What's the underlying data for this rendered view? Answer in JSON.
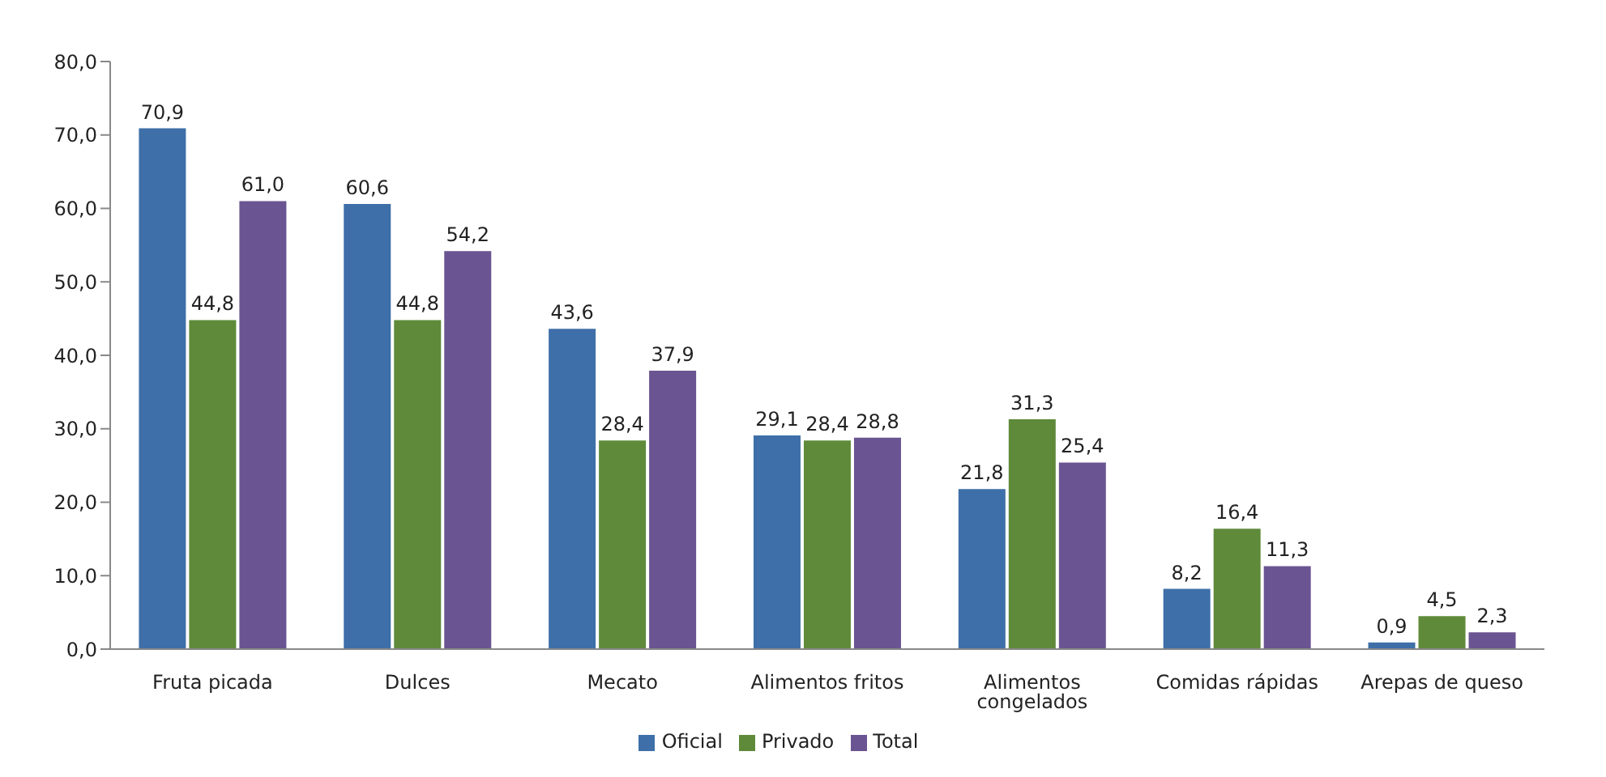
{
  "chart_data": {
    "type": "bar",
    "categories": [
      "Fruta picada",
      "Dulces",
      "Mecato",
      "Alimentos fritos",
      "Alimentos congelados",
      "Comidas rápidas",
      "Arepas de queso"
    ],
    "series": [
      {
        "name": "Oficial",
        "color": "#3e6fa8",
        "values": [
          70.9,
          60.6,
          43.6,
          29.1,
          21.8,
          8.2,
          0.9
        ],
        "value_labels": [
          "70,9",
          "60,6",
          "43,6",
          "29,1",
          "21,8",
          "8,2",
          "0,9"
        ]
      },
      {
        "name": "Privado",
        "color": "#5f8a3a",
        "values": [
          44.8,
          44.8,
          28.4,
          28.4,
          31.3,
          16.4,
          4.5
        ],
        "value_labels": [
          "44,8",
          "44,8",
          "28,4",
          "28,4",
          "31,3",
          "16,4",
          "4,5"
        ]
      },
      {
        "name": "Total",
        "color": "#6a5491",
        "values": [
          61.0,
          54.2,
          37.9,
          28.8,
          25.4,
          11.3,
          2.3
        ],
        "value_labels": [
          "61,0",
          "54,2",
          "37,9",
          "28,8",
          "25,4",
          "11,3",
          "2,3"
        ]
      }
    ],
    "ylim": [
      0,
      80
    ],
    "yticks": [
      {
        "value": 0,
        "label": "0,0"
      },
      {
        "value": 10,
        "label": "10,0"
      },
      {
        "value": 20,
        "label": "20,0"
      },
      {
        "value": 30,
        "label": "30,0"
      },
      {
        "value": 40,
        "label": "40,0"
      },
      {
        "value": 50,
        "label": "50,0"
      },
      {
        "value": 60,
        "label": "60,0"
      },
      {
        "value": 70,
        "label": "70,0"
      },
      {
        "value": 80,
        "label": "80,0"
      }
    ],
    "grid": false,
    "legend": "bottom"
  }
}
